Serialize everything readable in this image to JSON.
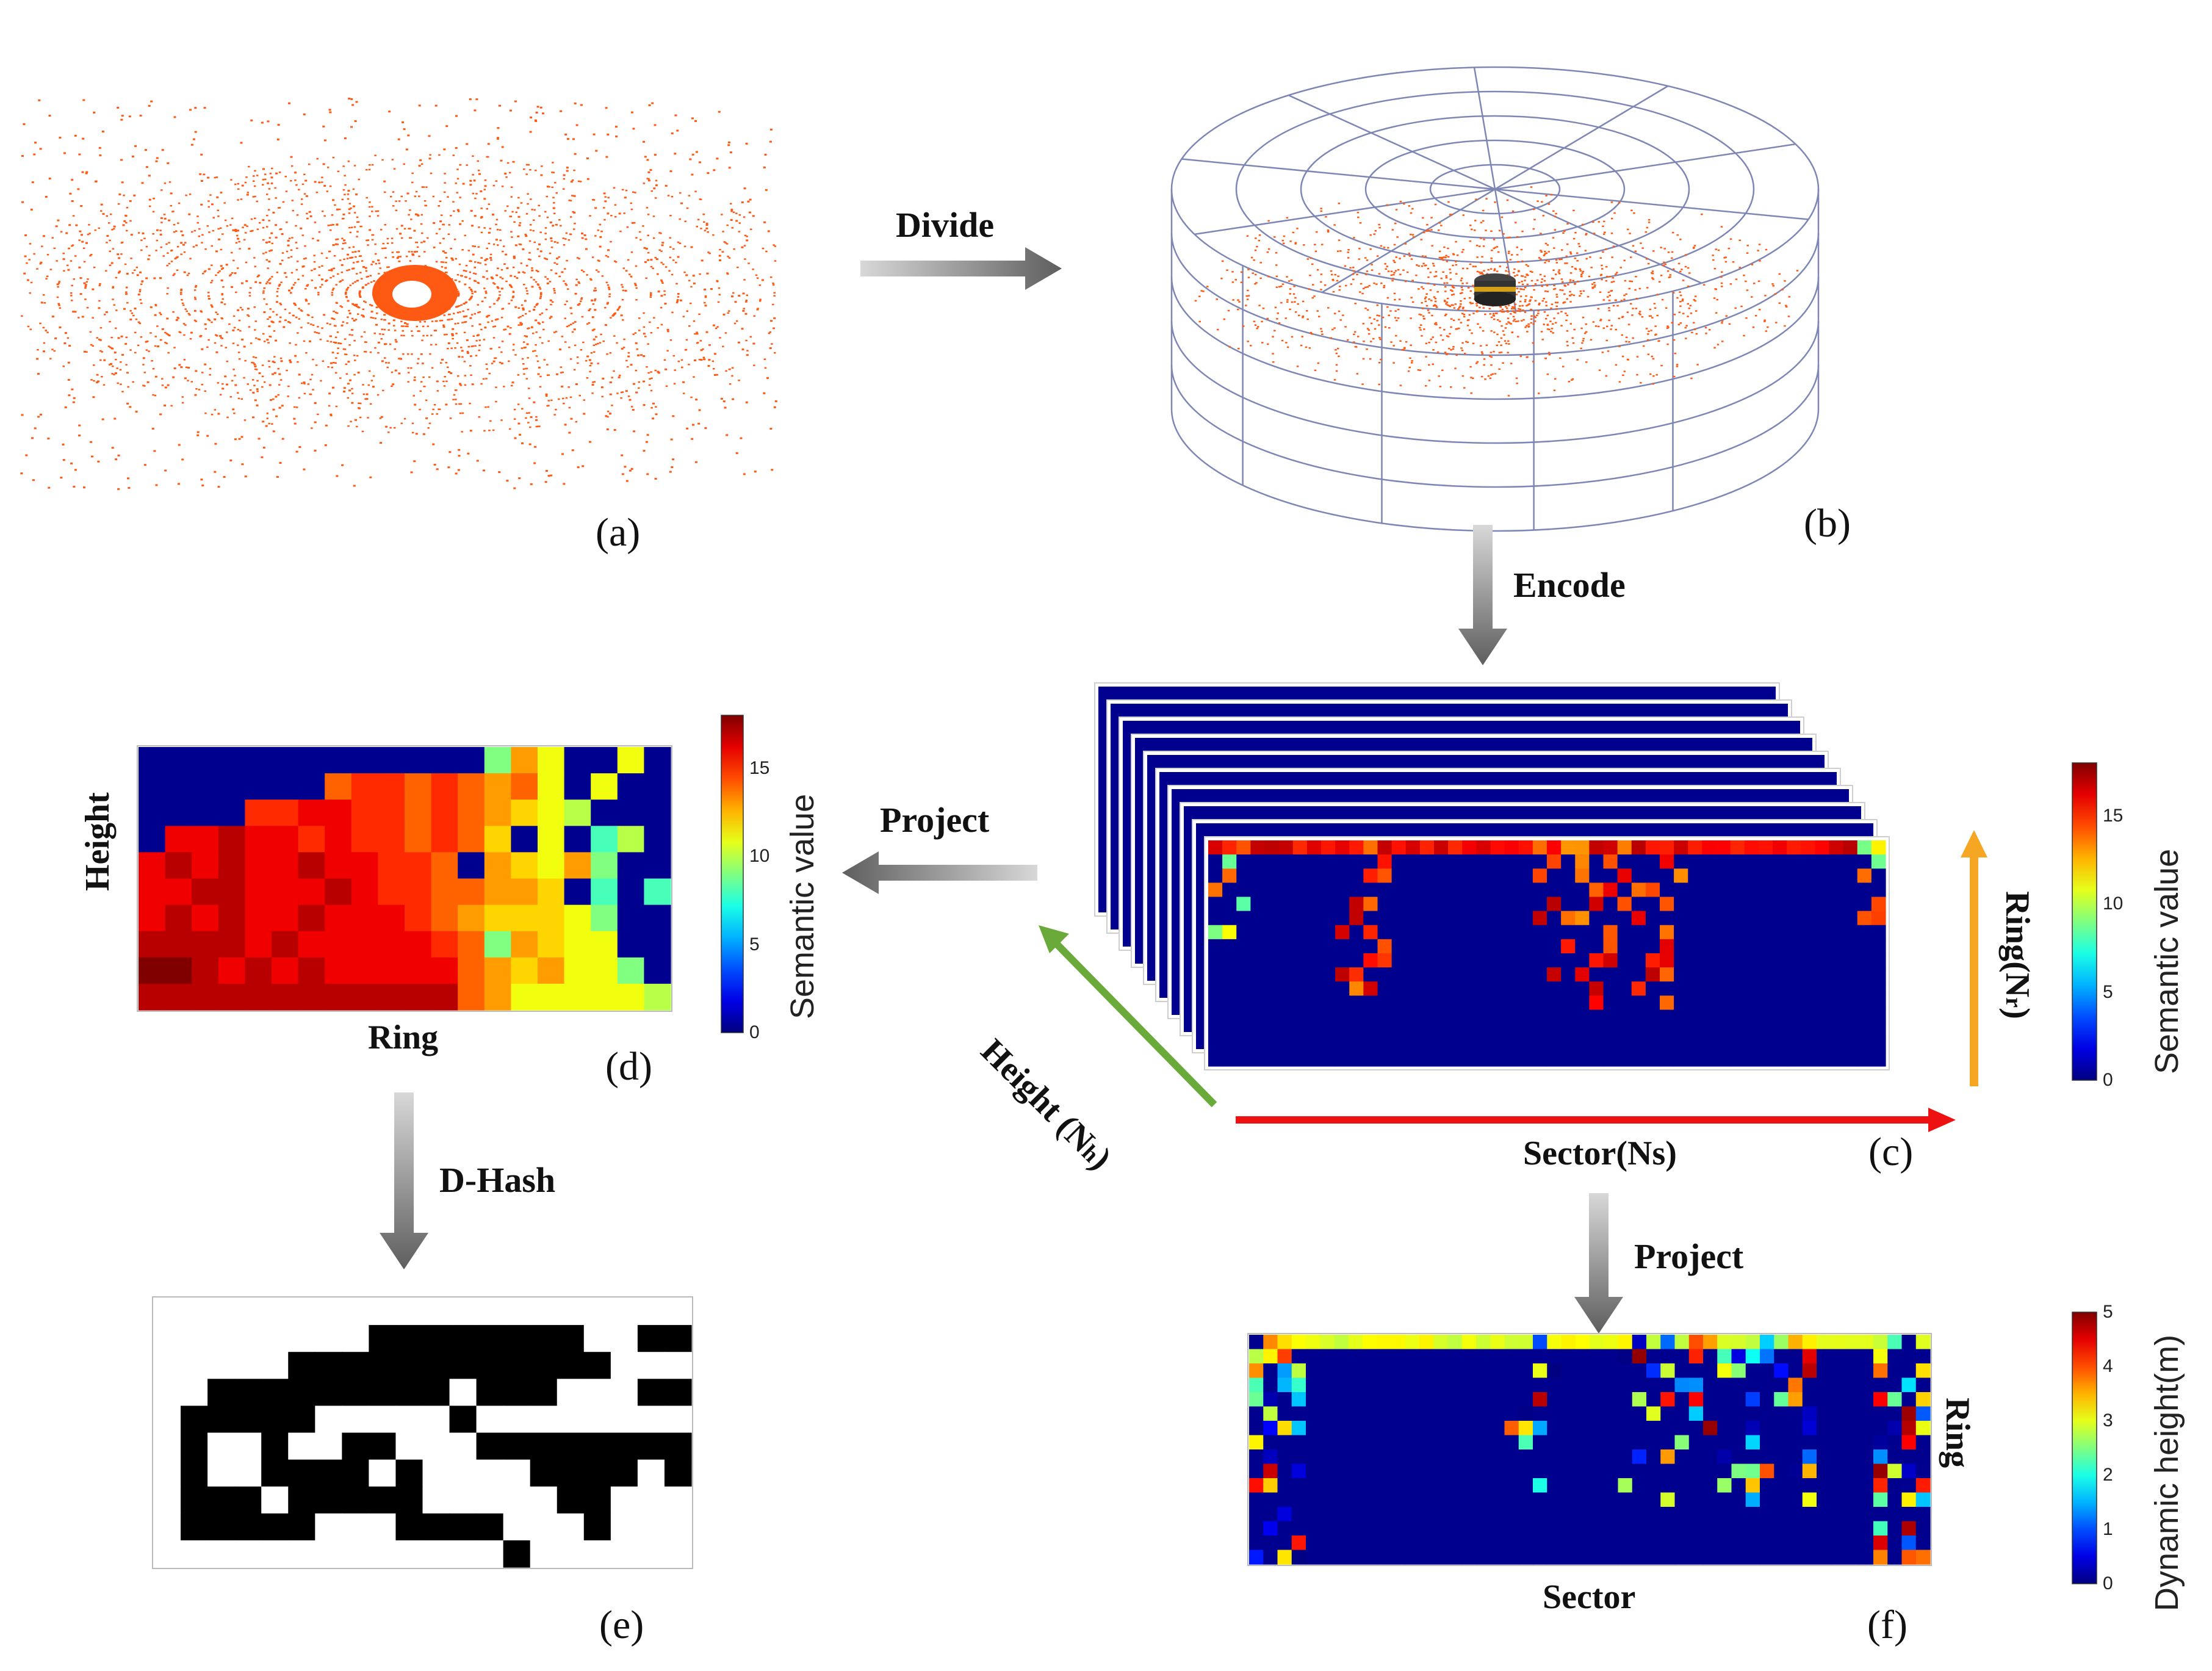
{
  "steps": {
    "divide": "Divide",
    "encode": "Encode",
    "project_left": "Project",
    "project_down": "Project",
    "dhash": "D-Hash"
  },
  "panels": {
    "a": "(a)",
    "b": "(b)",
    "c": "(c)",
    "d": "(d)",
    "e": "(e)",
    "f": "(f)"
  },
  "axes": {
    "d_y": "Height",
    "d_x": "Ring",
    "c_height": "Height  (N",
    "c_height_sub": "h",
    "c_sector": "Sector(Ns)",
    "c_ring": "Ring(N",
    "c_ring_sub": "r",
    "f_x": "Sector",
    "f_y": "Ring"
  },
  "colorbars": {
    "semantic_title": "Semantic value",
    "semantic_ticks": [
      "15",
      "10",
      "5",
      "0"
    ],
    "semantic_ticks_c": [
      "15",
      "10",
      "5",
      "0"
    ],
    "dynamic_title": "Dynamic height(m)",
    "dynamic_ticks": [
      "5",
      "4",
      "3",
      "2",
      "1",
      "0"
    ]
  },
  "colors": {
    "arrow_grey": "#6b6b6b",
    "height_arrow": "#6aaa3a",
    "sector_arrow": "#ee1111",
    "ring_arrow": "#f5a623",
    "points": "#ff5a14",
    "grid": "#7d86b4",
    "navy": "#00008f"
  }
}
